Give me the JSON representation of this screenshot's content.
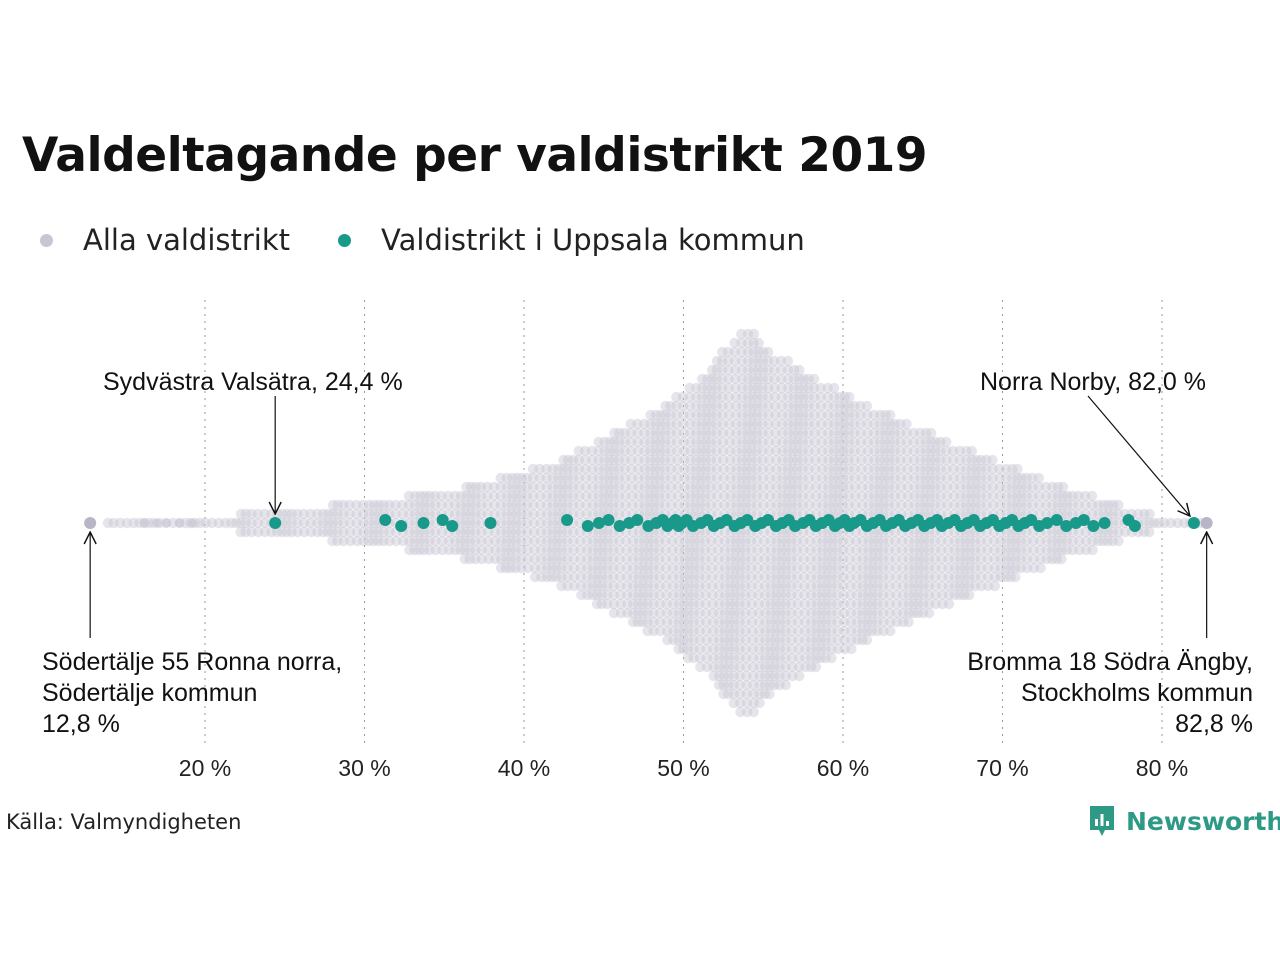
{
  "title": "Valdeltagande per valdistrikt 2019",
  "legend": {
    "all_label": "Alla valdistrikt",
    "uppsala_label": "Valdistrikt i Uppsala kommun",
    "all_color": "#c8c6d3",
    "uppsala_color": "#19998a"
  },
  "source": "Källa: Valmyndigheten",
  "brand": "Newsworthy",
  "chart_data": {
    "type": "scatter",
    "subtype": "beeswarm",
    "title": "Valdeltagande per valdistrikt 2019",
    "xlabel": "",
    "ylabel": "",
    "xlim": [
      12,
      84
    ],
    "x_ticks": [
      20,
      30,
      40,
      50,
      60,
      70,
      80
    ],
    "x_tick_labels": [
      "20 %",
      "30 %",
      "40 %",
      "50 %",
      "60 %",
      "70 %",
      "80 %"
    ],
    "grid": "vertical dotted",
    "series": [
      {
        "name": "Alla valdistrikt",
        "color": "#c8c6d3",
        "distribution_note_values": {
          "min": 12.8,
          "max": 82.8,
          "peak": 53.8
        }
      },
      {
        "name": "Valdistrikt i Uppsala kommun",
        "color": "#19998a",
        "values": [
          24.4,
          31.3,
          32.3,
          33.7,
          34.9,
          35.5,
          37.9,
          42.7,
          44.0,
          44.7,
          45.3,
          46.0,
          46.6,
          47.1,
          47.8,
          48.3,
          48.7,
          49.0,
          49.3,
          49.5,
          49.7,
          49.9,
          50.2,
          50.6,
          51.1,
          51.5,
          51.9,
          52.3,
          52.7,
          53.2,
          53.6,
          54.0,
          54.5,
          54.9,
          55.3,
          55.8,
          56.2,
          56.6,
          57.0,
          57.5,
          57.9,
          58.3,
          58.7,
          59.1,
          59.5,
          59.8,
          60.1,
          60.4,
          60.7,
          61.1,
          61.5,
          61.9,
          62.3,
          62.7,
          63.1,
          63.5,
          63.9,
          64.3,
          64.7,
          65.1,
          65.5,
          65.9,
          66.2,
          66.6,
          67.0,
          67.4,
          67.8,
          68.2,
          68.6,
          69.0,
          69.4,
          69.8,
          70.2,
          70.6,
          71.0,
          71.4,
          71.8,
          72.3,
          72.8,
          73.4,
          74.0,
          74.6,
          75.1,
          75.7,
          76.4,
          77.9,
          78.3,
          82.0
        ]
      }
    ],
    "annotations": [
      {
        "text": "Sydvästra Valsätra, 24,4 %",
        "value": 24.4
      },
      {
        "text": "Norra Norby, 82,0 %",
        "value": 82.0
      },
      {
        "lines": [
          "Södertälje 55 Ronna norra,",
          "Södertälje kommun",
          "12,8 %"
        ],
        "value": 12.8
      },
      {
        "lines": [
          "Bromma 18 Södra Ängby,",
          "Stockholms kommun",
          "82,8 %"
        ],
        "value": 82.8
      }
    ]
  }
}
